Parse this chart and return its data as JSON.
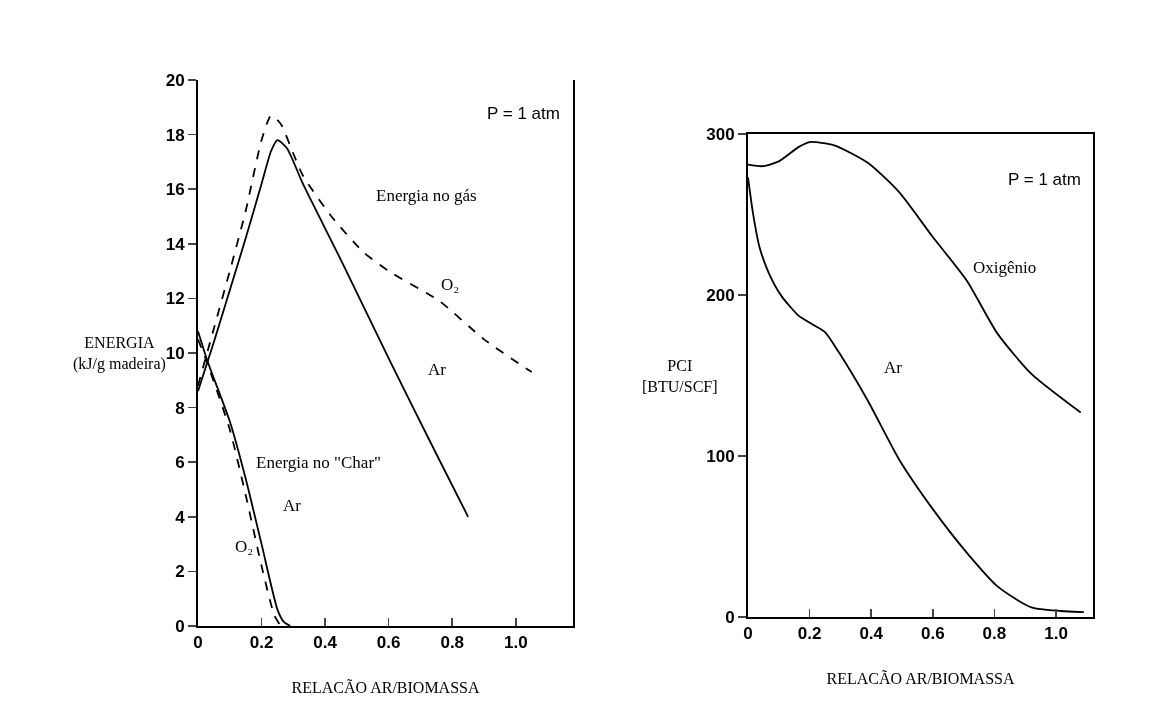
{
  "chart_data": [
    {
      "type": "line",
      "xlabel": "RELACÃO AR/BIOMASSA",
      "ylabel": "ENERGIA\n(kJ/g madeira)",
      "xlim": [
        0,
        1.18
      ],
      "ylim": [
        0,
        20
      ],
      "xticks": [
        0,
        0.2,
        0.4,
        0.6,
        0.8,
        {
          "value": 1,
          "label": "1.0"
        }
      ],
      "yticks": [
        0,
        2,
        4,
        6,
        8,
        10,
        12,
        14,
        16,
        18,
        20
      ],
      "grid": false,
      "legend": false,
      "marker": "none",
      "series": [
        {
          "name": "Ar",
          "color": "#000000",
          "line_style": "solid",
          "x": [
            0,
            0.05,
            0.1,
            0.15,
            0.2,
            0.23,
            0.25,
            0.28,
            0.33,
            0.45,
            0.6,
            0.75,
            0.85
          ],
          "values": [
            8.6,
            10.4,
            12.3,
            14.2,
            16.2,
            17.4,
            17.8,
            17.5,
            16.2,
            13.4,
            9.8,
            6.3,
            4
          ]
        },
        {
          "name": "O₂",
          "color": "#000000",
          "line_style": "dashed",
          "x": [
            0,
            0.05,
            0.1,
            0.15,
            0.2,
            0.23,
            0.26,
            0.3,
            0.33,
            0.42,
            0.52,
            0.6,
            0.76,
            0.9,
            1.05
          ],
          "values": [
            8.8,
            10.9,
            13,
            15.2,
            17.8,
            18.7,
            18.4,
            17.3,
            16.5,
            15,
            13.7,
            13,
            11.9,
            10.5,
            9.3
          ]
        },
        {
          "name": "Ar",
          "color": "#000000",
          "line_style": "solid",
          "x": [
            0,
            0.03,
            0.1,
            0.15,
            0.2,
            0.25,
            0.27,
            0.29
          ],
          "values": [
            10.8,
            9.7,
            7.5,
            5.4,
            3,
            0.6,
            0.15,
            0
          ]
        },
        {
          "name": "O₂",
          "color": "#000000",
          "line_style": "dashed",
          "x": [
            0,
            0.03,
            0.1,
            0.15,
            0.2,
            0.24,
            0.26
          ],
          "values": [
            10.5,
            9.6,
            7.2,
            4.8,
            2.2,
            0.4,
            0
          ]
        }
      ],
      "annotations": [
        "P = 1 atm",
        "Energia no gás",
        "Energia no \"Char\""
      ]
    },
    {
      "type": "line",
      "xlabel": "RELACÃO AR/BIOMASSA",
      "ylabel": "PCI\n[BTU/SCF]",
      "xlim": [
        0,
        1.12
      ],
      "ylim": [
        0,
        300
      ],
      "xticks": [
        0,
        0.2,
        0.4,
        0.6,
        0.8,
        {
          "value": 1,
          "label": "1.0"
        }
      ],
      "yticks": [
        0,
        100,
        200,
        300
      ],
      "grid": false,
      "legend": false,
      "marker": "none",
      "series": [
        {
          "name": "Oxigênio",
          "color": "#000000",
          "line_style": "solid",
          "x": [
            0,
            0.048,
            0.1,
            0.165,
            0.2,
            0.28,
            0.39,
            0.49,
            0.6,
            0.71,
            0.81,
            0.92,
            1.08
          ],
          "values": [
            281,
            280,
            283,
            292,
            295,
            293,
            282,
            264,
            236,
            209,
            176,
            151,
            127
          ]
        },
        {
          "name": "Ar",
          "color": "#000000",
          "line_style": "solid",
          "x": [
            0,
            0.016,
            0.037,
            0.069,
            0.11,
            0.165,
            0.207,
            0.25,
            0.293,
            0.39,
            0.49,
            0.6,
            0.71,
            0.81,
            0.92,
            1.09
          ],
          "values": [
            273,
            251,
            230,
            213,
            199,
            187,
            182,
            177,
            165,
            134,
            98,
            67,
            40,
            19,
            6,
            3
          ]
        }
      ],
      "annotations": [
        "P = 1 atm"
      ]
    }
  ]
}
